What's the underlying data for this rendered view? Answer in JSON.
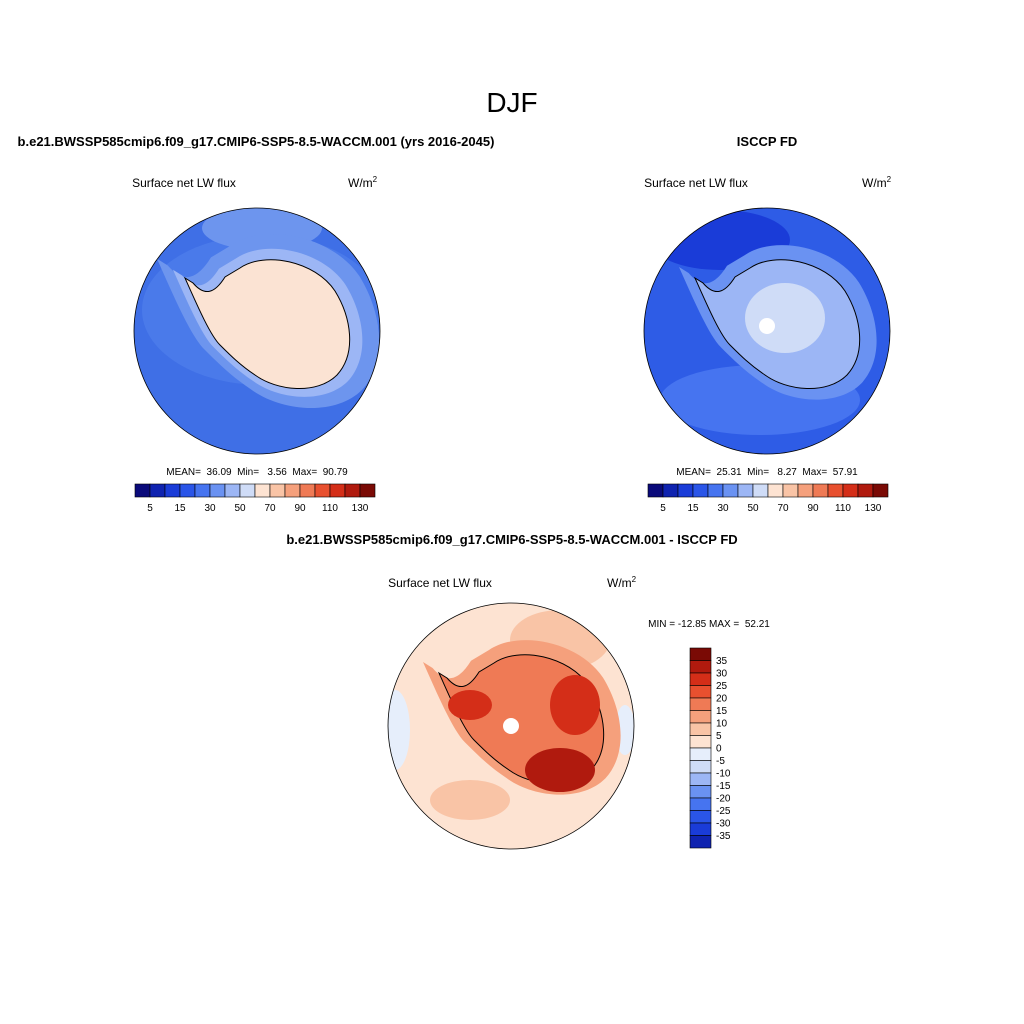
{
  "title": "DJF",
  "panels": [
    {
      "case": "b.e21.BWSSP585cmip6.f09_g17.CMIP6-SSP5-8.5-WACCM.001 (yrs 2016-2045)",
      "variable": "Surface net LW flux",
      "units": "W/m",
      "units_exponent": "2",
      "stats": "MEAN=  36.09  Min=   3.56  Max=  90.79",
      "colorbar": {
        "labels": [
          "5",
          "15",
          "30",
          "50",
          "70",
          "90",
          "110",
          "130"
        ],
        "colors": [
          "#0a0a7a",
          "#0f23b0",
          "#1a3cd8",
          "#2a55e8",
          "#4674f0",
          "#6a92f2",
          "#9cb6f5",
          "#cfdcf7",
          "#fde3d2",
          "#f9c4a6",
          "#f5a07c",
          "#ef7a55",
          "#e8502f",
          "#d42e18",
          "#b01a0e",
          "#7a0a05"
        ]
      }
    },
    {
      "case": "ISCCP FD",
      "variable": "Surface net LW flux",
      "units": "W/m",
      "units_exponent": "2",
      "stats": "MEAN=  25.31  Min=   8.27  Max=  57.91",
      "colorbar": {
        "labels": [
          "5",
          "15",
          "30",
          "50",
          "70",
          "90",
          "110",
          "130"
        ],
        "colors": [
          "#0a0a7a",
          "#0f23b0",
          "#1a3cd8",
          "#2a55e8",
          "#4674f0",
          "#6a92f2",
          "#9cb6f5",
          "#cfdcf7",
          "#fde3d2",
          "#f9c4a6",
          "#f5a07c",
          "#ef7a55",
          "#e8502f",
          "#d42e18",
          "#b01a0e",
          "#7a0a05"
        ]
      }
    },
    {
      "case": "b.e21.BWSSP585cmip6.f09_g17.CMIP6-SSP5-8.5-WACCM.001 - ISCCP FD",
      "variable": "Surface net LW flux",
      "units": "W/m",
      "units_exponent": "2",
      "stats": "MIN = -12.85 MAX =  52.21",
      "colorbar": {
        "labels": [
          "35",
          "30",
          "25",
          "20",
          "15",
          "10",
          "5",
          "0",
          "-5",
          "-10",
          "-15",
          "-20",
          "-25",
          "-30",
          "-35"
        ],
        "colors": [
          "#7a0a05",
          "#b01a0e",
          "#d42e18",
          "#e8502f",
          "#ef7a55",
          "#f5a07c",
          "#f9c4a6",
          "#fde3d2",
          "#e6eefb",
          "#cfdcf7",
          "#9cb6f5",
          "#6a92f2",
          "#4674f0",
          "#2a55e8",
          "#1a3cd8",
          "#0f23b0"
        ]
      }
    }
  ]
}
